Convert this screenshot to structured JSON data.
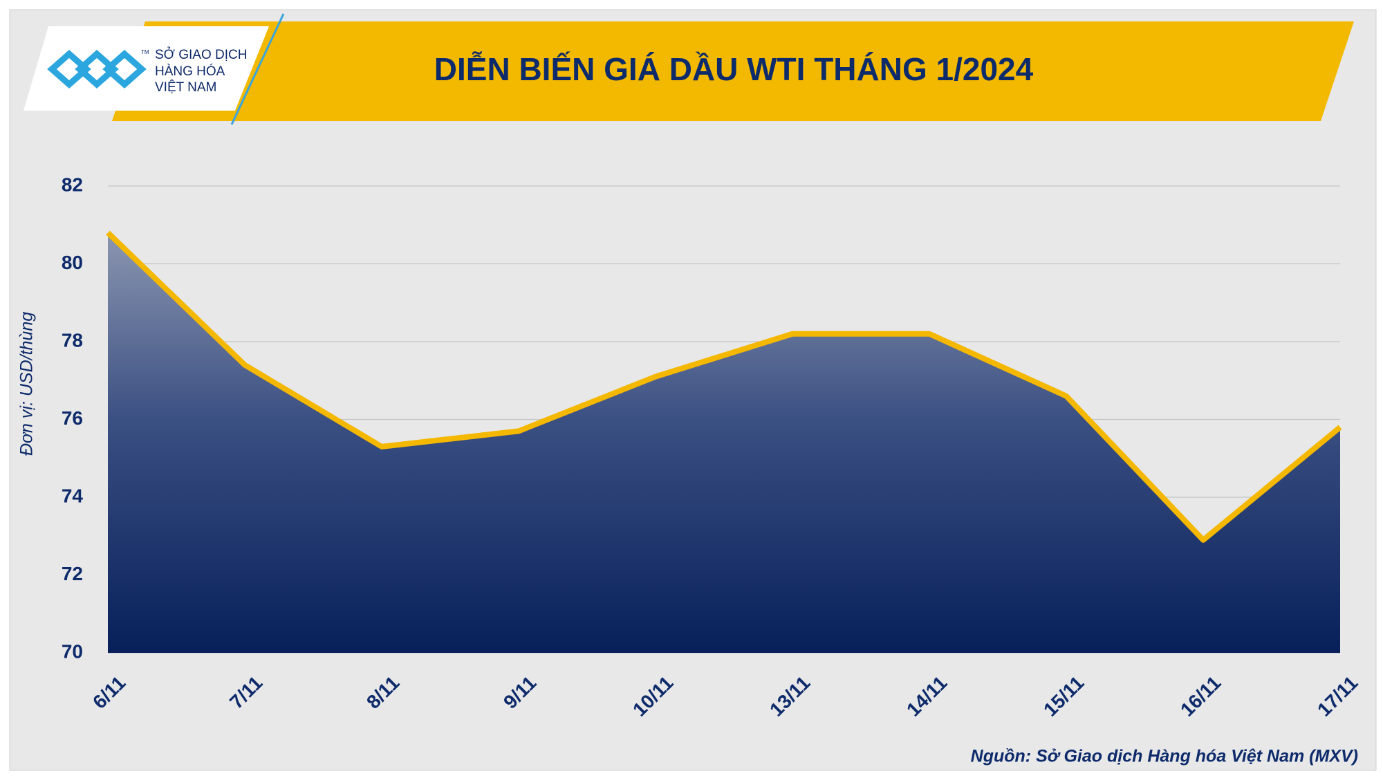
{
  "logo": {
    "lines": [
      "SỞ GIAO DỊCH",
      "HÀNG HÓA",
      "VIỆT NAM"
    ],
    "mark": "TM"
  },
  "chart_data": {
    "type": "area",
    "title": "DIỄN BIẾN GIÁ DẦU WTI THÁNG 1/2024",
    "y_label": "Đơn vị: USD/thùng",
    "source": "Nguồn: Sở Giao dịch Hàng hóa Việt Nam (MXV)",
    "categories": [
      "6/11",
      "7/11",
      "8/11",
      "9/11",
      "10/11",
      "13/11",
      "14/11",
      "15/11",
      "16/11",
      "17/11"
    ],
    "values": [
      80.8,
      77.4,
      75.3,
      75.7,
      77.1,
      78.2,
      78.2,
      76.6,
      72.9,
      75.8
    ],
    "color": "#f5b800",
    "ylim": [
      70,
      82
    ],
    "yticks": [
      70,
      72,
      74,
      76,
      78,
      80,
      82
    ],
    "grid": true
  }
}
